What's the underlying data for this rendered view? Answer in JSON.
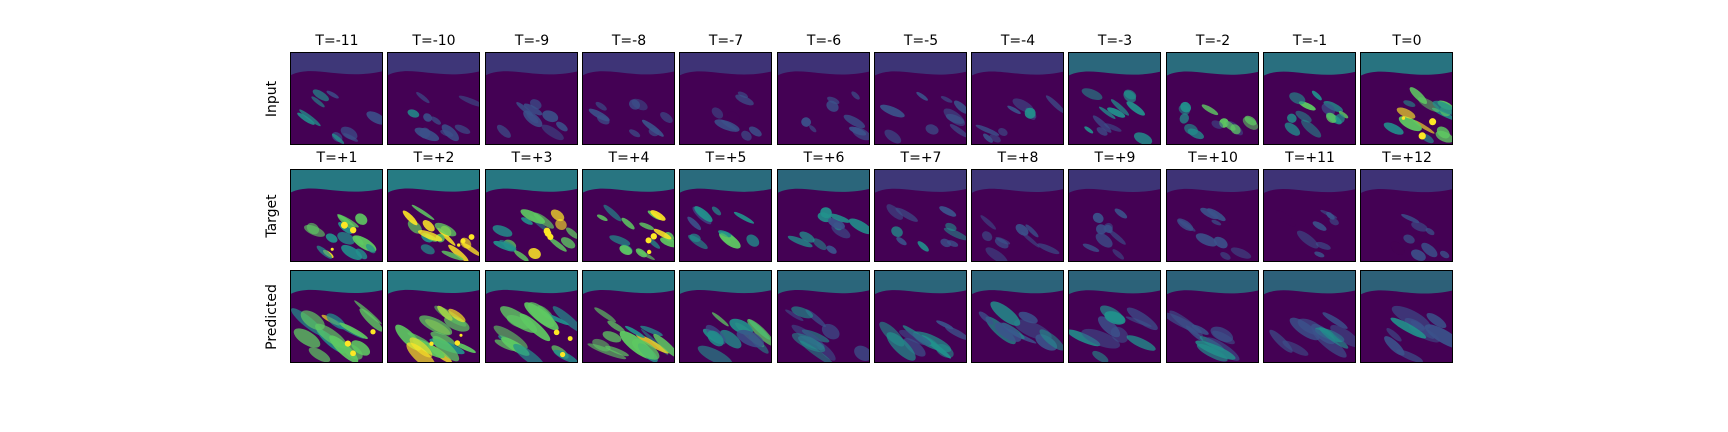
{
  "rows": [
    {
      "label": "Input",
      "titles": [
        "T=-11",
        "T=-10",
        "T=-9",
        "T=-8",
        "T=-7",
        "T=-6",
        "T=-5",
        "T=-4",
        "T=-3",
        "T=-2",
        "T=-1",
        "T=0"
      ],
      "intensity": [
        0.4,
        0.38,
        0.34,
        0.3,
        0.24,
        0.22,
        0.28,
        0.38,
        0.55,
        0.65,
        0.72,
        0.82
      ]
    },
    {
      "label": "Target",
      "titles": [
        "T=+1",
        "T=+2",
        "T=+3",
        "T=+4",
        "T=+5",
        "T=+6",
        "T=+7",
        "T=+8",
        "T=+9",
        "T=+10",
        "T=+11",
        "T=+12"
      ],
      "intensity": [
        0.92,
        1.0,
        0.9,
        0.85,
        0.62,
        0.5,
        0.4,
        0.32,
        0.28,
        0.26,
        0.24,
        0.22
      ]
    },
    {
      "label": "Predicted",
      "titles": [],
      "intensity": [
        0.92,
        0.95,
        0.85,
        0.78,
        0.62,
        0.52,
        0.48,
        0.44,
        0.42,
        0.4,
        0.38,
        0.36
      ]
    }
  ],
  "colormap": [
    "#440154",
    "#3b528b",
    "#21918c",
    "#5ec962",
    "#fde725"
  ]
}
